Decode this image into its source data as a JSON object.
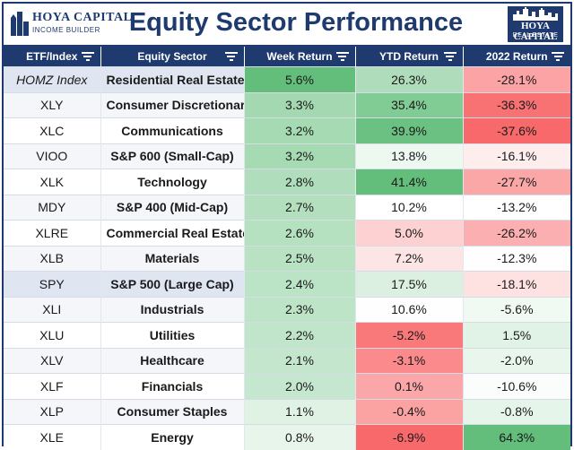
{
  "header": {
    "left_logo_brand": "HOYA CAPITAL",
    "left_logo_sub": "INCOME BUILDER",
    "title": "Equity Sector Performance",
    "right_logo_brand": "HOYA CAPITAL",
    "right_logo_sub": "REAL ESTATE"
  },
  "colors": {
    "navy": "#1f3a6e",
    "positive": "#63be7b",
    "negative": "#f8696b",
    "neutral": "#ffffff",
    "row_highlight": "#dfe6f2"
  },
  "chart_data": {
    "type": "table",
    "title": "Equity Sector Performance",
    "columns": [
      "ETF/Index",
      "Equity Sector",
      "Week Return",
      "YTD Return",
      "2022 Return"
    ],
    "rows": [
      {
        "ticker": "HOMZ Index",
        "sector": "Residential Real Estate",
        "week": 5.6,
        "ytd": 26.3,
        "y2022": -28.1
      },
      {
        "ticker": "XLY",
        "sector": "Consumer Discretionary",
        "week": 3.3,
        "ytd": 35.4,
        "y2022": -36.3
      },
      {
        "ticker": "XLC",
        "sector": "Communications",
        "week": 3.2,
        "ytd": 39.9,
        "y2022": -37.6
      },
      {
        "ticker": "VIOO",
        "sector": "S&P 600 (Small-Cap)",
        "week": 3.2,
        "ytd": 13.8,
        "y2022": -16.1
      },
      {
        "ticker": "XLK",
        "sector": "Technology",
        "week": 2.8,
        "ytd": 41.4,
        "y2022": -27.7
      },
      {
        "ticker": "MDY",
        "sector": "S&P 400 (Mid-Cap)",
        "week": 2.7,
        "ytd": 10.2,
        "y2022": -13.2
      },
      {
        "ticker": "XLRE",
        "sector": "Commercial Real Estate",
        "week": 2.6,
        "ytd": 5.0,
        "y2022": -26.2
      },
      {
        "ticker": "XLB",
        "sector": "Materials",
        "week": 2.5,
        "ytd": 7.2,
        "y2022": -12.3
      },
      {
        "ticker": "SPY",
        "sector": "S&P 500 (Large Cap)",
        "week": 2.4,
        "ytd": 17.5,
        "y2022": -18.1
      },
      {
        "ticker": "XLI",
        "sector": "Industrials",
        "week": 2.3,
        "ytd": 10.6,
        "y2022": -5.6
      },
      {
        "ticker": "XLU",
        "sector": "Utilities",
        "week": 2.2,
        "ytd": -5.2,
        "y2022": 1.5
      },
      {
        "ticker": "XLV",
        "sector": "Healthcare",
        "week": 2.1,
        "ytd": -3.1,
        "y2022": -2.0
      },
      {
        "ticker": "XLF",
        "sector": "Financials",
        "week": 2.0,
        "ytd": 0.1,
        "y2022": -10.6
      },
      {
        "ticker": "XLP",
        "sector": "Consumer Staples",
        "week": 1.1,
        "ytd": -0.4,
        "y2022": -0.8
      },
      {
        "ticker": "XLE",
        "sector": "Energy",
        "week": 0.8,
        "ytd": -6.9,
        "y2022": 64.3
      }
    ],
    "highlighted_tickers": [
      "HOMZ Index",
      "SPY"
    ],
    "italic_tickers": [
      "HOMZ Index"
    ],
    "value_suffix": "%",
    "value_decimals": 1
  }
}
